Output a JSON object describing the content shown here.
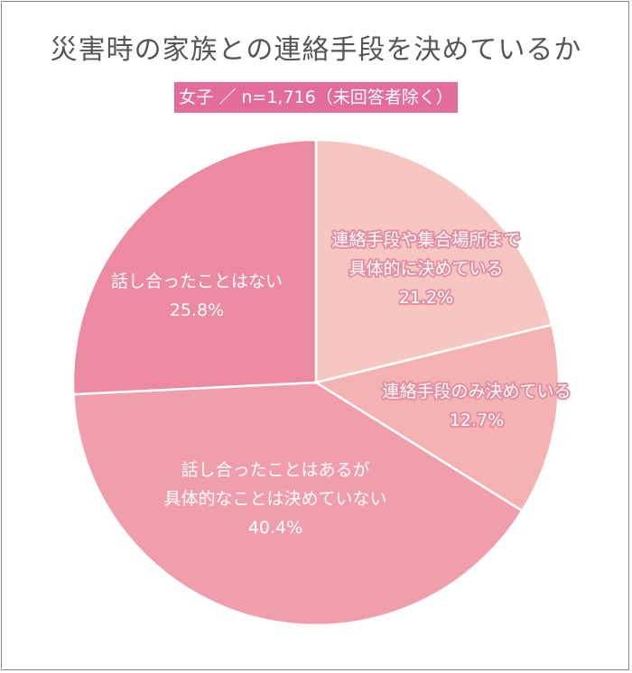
{
  "header": {
    "title": "災害時の家族との連絡手段を決めているか",
    "badge": "女子 ／ n=1,716（未回答者除く）"
  },
  "chart_data": {
    "type": "pie",
    "title": "災害時の家族との連絡手段を決めているか",
    "subtitle": "女子 ／ n=1,716（未回答者除く）",
    "unit": "%",
    "slices": [
      {
        "label_lines": [
          "連絡手段や集合場所まで",
          "具体的に決めている"
        ],
        "value": 21.2,
        "value_label": "21.2%",
        "color": "#f7c6c2",
        "halo": true
      },
      {
        "label_lines": [
          "連絡手段のみ決めている"
        ],
        "value": 12.7,
        "value_label": "12.7%",
        "color": "#f4b3b2",
        "halo": true
      },
      {
        "label_lines": [
          "話し合ったことはあるが",
          "具体的なことは決めていない"
        ],
        "value": 40.4,
        "value_label": "40.4%",
        "color": "#f09eab",
        "halo": false
      },
      {
        "label_lines": [
          "話し合ったことはない"
        ],
        "value": 25.8,
        "value_label": "25.8%",
        "color": "#ec8aa2",
        "halo": false
      }
    ]
  }
}
